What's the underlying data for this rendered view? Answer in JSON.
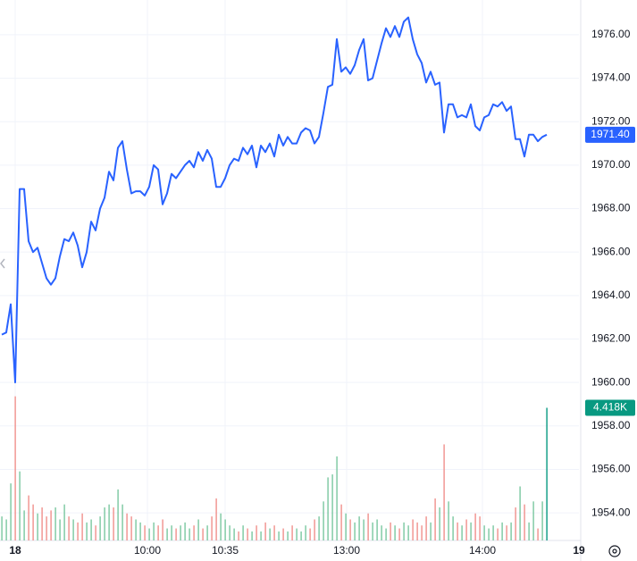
{
  "chart_data": {
    "type": "line",
    "series": [
      {
        "name": "Price",
        "color": "#2962ff",
        "values": [
          1962.2,
          1962.3,
          1963.6,
          1960.0,
          1968.9,
          1968.9,
          1966.5,
          1966.0,
          1966.2,
          1965.5,
          1964.8,
          1964.5,
          1964.8,
          1965.8,
          1966.6,
          1966.5,
          1966.9,
          1966.3,
          1965.3,
          1966.0,
          1967.4,
          1967.0,
          1968.0,
          1968.5,
          1969.7,
          1969.3,
          1970.8,
          1971.1,
          1969.8,
          1968.7,
          1968.8,
          1968.8,
          1968.6,
          1969.0,
          1970.0,
          1969.8,
          1968.2,
          1968.7,
          1969.6,
          1969.4,
          1969.7,
          1970.0,
          1970.2,
          1969.9,
          1970.6,
          1970.2,
          1970.7,
          1970.3,
          1969.0,
          1969.0,
          1969.4,
          1970.0,
          1970.3,
          1970.2,
          1970.8,
          1970.5,
          1970.9,
          1969.9,
          1970.9,
          1970.6,
          1971.0,
          1970.4,
          1971.4,
          1970.9,
          1971.3,
          1971.0,
          1971.0,
          1971.5,
          1971.7,
          1971.6,
          1971.0,
          1971.3,
          1972.4,
          1973.6,
          1973.7,
          1975.8,
          1974.3,
          1974.5,
          1974.2,
          1974.6,
          1975.3,
          1975.8,
          1973.9,
          1974.0,
          1974.8,
          1975.6,
          1976.3,
          1975.9,
          1976.4,
          1975.9,
          1976.6,
          1976.8,
          1975.8,
          1975.1,
          1974.7,
          1973.8,
          1974.3,
          1973.7,
          1973.8,
          1971.5,
          1972.8,
          1972.8,
          1972.2,
          1972.3,
          1972.2,
          1972.8,
          1971.8,
          1971.6,
          1972.2,
          1972.3,
          1972.8,
          1972.7,
          1972.9,
          1972.5,
          1972.7,
          1971.2,
          1971.2,
          1970.4,
          1971.4,
          1971.4,
          1971.1,
          1971.3,
          1971.4
        ],
        "last_label": "1971.40"
      },
      {
        "name": "Volume",
        "type": "bar",
        "axis": "y2",
        "up_color": "#7ac7a0",
        "down_color": "#f0908c",
        "last_color": "#089981",
        "values": [
          800,
          700,
          1900,
          4800,
          2300,
          1000,
          1500,
          1200,
          900,
          1100,
          800,
          1000,
          1100,
          700,
          1200,
          800,
          700,
          600,
          900,
          600,
          700,
          500,
          800,
          1100,
          1200,
          1100,
          1700,
          1200,
          900,
          800,
          700,
          600,
          500,
          400,
          600,
          500,
          700,
          400,
          500,
          400,
          500,
          600,
          400,
          500,
          700,
          400,
          500,
          800,
          1400,
          900,
          700,
          500,
          400,
          300,
          500,
          400,
          300,
          500,
          300,
          600,
          400,
          500,
          300,
          400,
          300,
          500,
          400,
          300,
          500,
          400,
          700,
          800,
          1300,
          2100,
          2200,
          2800,
          1200,
          900,
          700,
          600,
          800,
          700,
          900,
          600,
          700,
          500,
          400,
          600,
          500,
          400,
          600,
          500,
          700,
          600,
          500,
          800,
          600,
          1400,
          1100,
          3200,
          1300,
          800,
          600,
          500,
          700,
          600,
          900,
          800,
          500,
          400,
          500,
          400,
          600,
          500,
          600,
          1100,
          1800,
          1200,
          600,
          1300,
          400,
          1300,
          4418
        ],
        "last_label": "4.418K"
      }
    ],
    "xlim": [
      -0.4,
      129.2
    ],
    "xticks": [
      {
        "value": 3,
        "label": "18"
      },
      {
        "value": 32.6,
        "label": "10:00"
      },
      {
        "value": 50,
        "label": "10:35"
      },
      {
        "value": 77.2,
        "label": "13:00"
      },
      {
        "value": 107.6,
        "label": "14:00"
      },
      {
        "value": 129.2,
        "label": "19"
      }
    ],
    "ylim": [
      1952.73,
      1977.6
    ],
    "yticks": [
      {
        "value": 1954,
        "label": "1954.00"
      },
      {
        "value": 1956,
        "label": "1956.00"
      },
      {
        "value": 1958,
        "label": "1958.00"
      },
      {
        "value": 1960,
        "label": "1960.00"
      },
      {
        "value": 1962,
        "label": "1962.00"
      },
      {
        "value": 1964,
        "label": "1964.00"
      },
      {
        "value": 1966,
        "label": "1966.00"
      },
      {
        "value": 1968,
        "label": "1968.00"
      },
      {
        "value": 1970,
        "label": "1970.00"
      },
      {
        "value": 1972,
        "label": "1972.00"
      },
      {
        "value": 1974,
        "label": "1974.00"
      },
      {
        "value": 1976,
        "label": "1976.00"
      }
    ],
    "y2lim": [
      0,
      18000
    ],
    "grid": true
  }
}
